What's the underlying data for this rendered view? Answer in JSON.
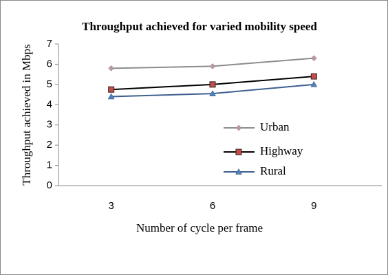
{
  "chart_data": {
    "type": "line",
    "title": "Throughput achieved for varied mobility speed",
    "x_label": "Number of cycle per frame",
    "y_label": "Throughput achieved in Mbps",
    "categories": [
      "3",
      "6",
      "9"
    ],
    "series": [
      {
        "name": "Urban",
        "color": "#8c8c8c",
        "marker": "diamond",
        "marker_color": "#b89aa3",
        "values": [
          5.8,
          5.9,
          6.3
        ]
      },
      {
        "name": "Highway",
        "color": "#000000",
        "marker": "square",
        "marker_color": "#c0504d",
        "values": [
          4.75,
          5.0,
          5.4
        ]
      },
      {
        "name": "Rural",
        "color": "#3d5f8f",
        "marker": "triangle",
        "marker_color": "#4f81bd",
        "values": [
          4.4,
          4.55,
          5.0
        ]
      }
    ],
    "ylim": [
      0,
      7
    ],
    "yticks": [
      0,
      1,
      2,
      3,
      4,
      5,
      6,
      7
    ],
    "grid": false,
    "legend": "right"
  }
}
